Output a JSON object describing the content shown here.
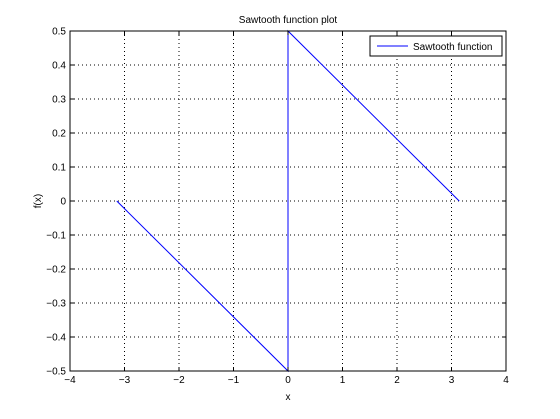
{
  "chart_data": {
    "type": "line",
    "title": "Sawtooth function plot",
    "xlabel": "x",
    "ylabel": "f(x)",
    "xlim": [
      -4,
      4
    ],
    "ylim": [
      -0.5,
      0.5
    ],
    "xticks": [
      -4,
      -3,
      -2,
      -1,
      0,
      1,
      2,
      3,
      4
    ],
    "xtick_labels": [
      "−4",
      "−3",
      "−2",
      "−1",
      "0",
      "1",
      "2",
      "3",
      "4"
    ],
    "yticks": [
      0.5,
      0.4,
      0.3,
      0.2,
      0.1,
      0,
      -0.1,
      -0.2,
      -0.3,
      -0.4,
      -0.5
    ],
    "ytick_labels": [
      "0.5",
      "0.4",
      "0.3",
      "0.2",
      "0.1",
      "0",
      "−0.1",
      "−0.2",
      "−0.3",
      "−0.4",
      "−0.5"
    ],
    "grid": true,
    "legend_position": "top-right",
    "series": [
      {
        "name": "Sawtooth function",
        "color": "#0000ff",
        "x": [
          -3.1416,
          0,
          0,
          3.1416
        ],
        "y": [
          0,
          -0.5,
          0.5,
          0
        ]
      }
    ]
  }
}
